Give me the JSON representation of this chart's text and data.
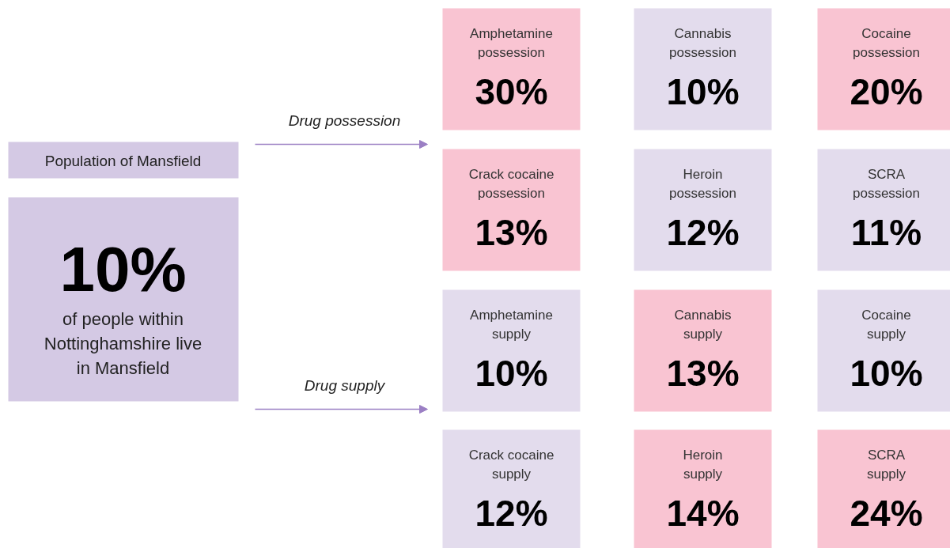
{
  "chart_data": {
    "type": "other",
    "categories": [
      "Amphetamine possession",
      "Cannabis possession",
      "Cocaine possession",
      "Crack cocaine possession",
      "Heroin possession",
      "SCRA possession",
      "Amphetamine supply",
      "Cannabis supply",
      "Cocaine supply",
      "Crack cocaine supply",
      "Heroin supply",
      "SCRA supply"
    ],
    "values": [
      30,
      10,
      20,
      13,
      12,
      11,
      10,
      13,
      10,
      12,
      14,
      24
    ],
    "value_labels": [
      "30%",
      "10%",
      "20%",
      "13%",
      "12%",
      "11%",
      "10%",
      "13%",
      "10%",
      "12%",
      "14%",
      "24%"
    ],
    "colors": [
      "#f9c4d2",
      "#e3dced",
      "#f9c4d2",
      "#f9c4d2",
      "#e3dced",
      "#e3dced",
      "#e3dced",
      "#f9c4d2",
      "#e3dced",
      "#e3dced",
      "#f9c4d2",
      "#f9c4d2"
    ],
    "annotations": [
      "Population of Mansfield",
      "10%",
      "of people within Nottinghamshire live in Mansfield",
      "Drug possession",
      "Drug supply"
    ]
  }
}
